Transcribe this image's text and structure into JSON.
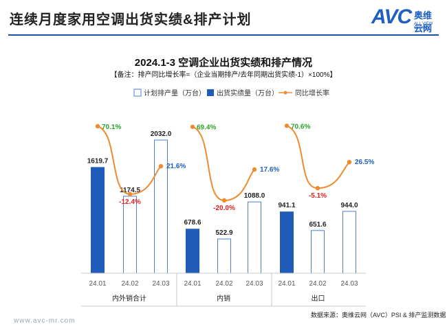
{
  "header": {
    "title": "连续月度家用空调出货实绩&排产计划",
    "logo_text": "AVC",
    "logo_cn": "奥维云网",
    "logo_en": "ALL VIEW CLOUD",
    "brand_color": "#1f5fbf"
  },
  "footer": {
    "url": "www.avc-mr.com",
    "source": "数据来源：奥维云网（AVC）PSI & 排产监测数据"
  },
  "chart_data": {
    "type": "bar",
    "title": "2024.1-3 空调企业出货实绩和排产情况",
    "note": "【备注：排产同比增长率=（企业当期排产/去年同期出货实绩-1）×100%】",
    "legend_position": "top",
    "groups": [
      {
        "name": "内外销合计",
        "categories": [
          "24.01",
          "24.02",
          "24.03"
        ]
      },
      {
        "name": "内销",
        "categories": [
          "24.01",
          "24.02",
          "24.03"
        ]
      },
      {
        "name": "出口",
        "categories": [
          "24.01",
          "24.02",
          "24.03"
        ]
      }
    ],
    "ylim": [
      0,
      2200
    ],
    "series": [
      {
        "name": "计划排产量（万台）",
        "kind": "bar",
        "color": "#4a7fd0",
        "values": [
          null,
          1174.5,
          2032.0,
          null,
          522.9,
          1088.0,
          null,
          651.6,
          944.0
        ]
      },
      {
        "name": "出货实绩量（万台）",
        "kind": "bar",
        "color": "#1f5bb8",
        "values": [
          1619.7,
          null,
          null,
          678.6,
          null,
          null,
          941.1,
          null,
          null
        ]
      },
      {
        "name": "同比增长率",
        "kind": "line",
        "color": "#ef8a2e",
        "values": [
          70.1,
          -12.4,
          21.6,
          69.4,
          -20.0,
          17.6,
          70.6,
          -5.1,
          26.5
        ],
        "labels": [
          "70.1%",
          "-12.4%",
          "21.6%",
          "69.4%",
          "-20.0%",
          "17.6%",
          "70.6%",
          "-5.1%",
          "26.5%"
        ]
      }
    ],
    "bar_labels": [
      "1619.7",
      "1174.5",
      "2032.0",
      "678.6",
      "522.9",
      "1088.0",
      "941.1",
      "651.6",
      "944.0"
    ],
    "colors": {
      "positive_rate": "#2aa52a",
      "negative_rate": "#e02020",
      "rate_blue": "#1f5fbf"
    }
  }
}
